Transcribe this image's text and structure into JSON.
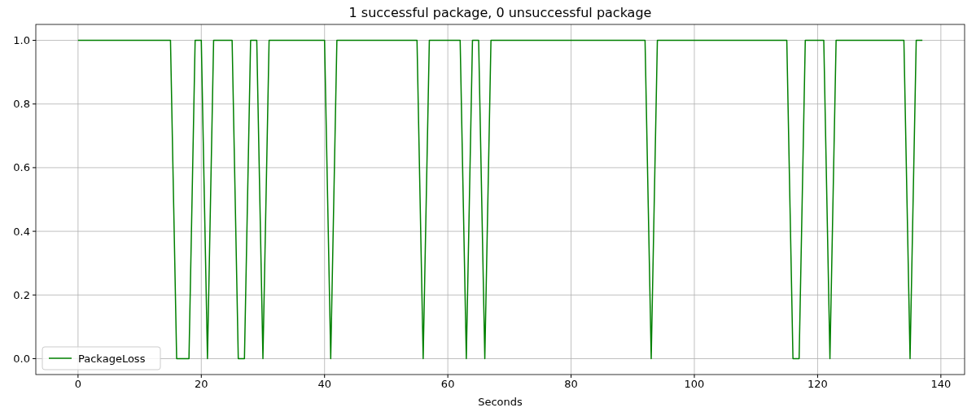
{
  "chart_data": {
    "type": "line",
    "title": "1 successful package, 0 unsuccessful package",
    "xlabel": "Seconds",
    "x": [
      0,
      15,
      16,
      18,
      19,
      20,
      21,
      22,
      25,
      26,
      27,
      28,
      29,
      30,
      31,
      40,
      41,
      42,
      55,
      56,
      57,
      62,
      63,
      64,
      65,
      66,
      67,
      92,
      93,
      94,
      115,
      116,
      117,
      118,
      121,
      122,
      123,
      134,
      135,
      136,
      137
    ],
    "series": [
      {
        "name": "PackageLoss",
        "color": "#008000",
        "values": [
          1,
          1,
          0,
          0,
          1,
          1,
          0,
          1,
          1,
          0,
          0,
          1,
          1,
          0,
          1,
          1,
          0,
          1,
          1,
          0,
          1,
          1,
          0,
          1,
          1,
          0,
          1,
          1,
          0,
          1,
          1,
          0,
          0,
          1,
          1,
          0,
          1,
          1,
          0,
          1,
          1
        ]
      }
    ],
    "xlim": [
      -6.85,
      143.85
    ],
    "ylim": [
      -0.05,
      1.05
    ],
    "xticks": [
      0,
      20,
      40,
      60,
      80,
      100,
      120,
      140
    ],
    "yticks": [
      {
        "value": 0,
        "label": "0.0"
      },
      {
        "value": 0.2,
        "label": "0.2"
      },
      {
        "value": 0.4,
        "label": "0.4"
      },
      {
        "value": 0.6,
        "label": "0.6"
      },
      {
        "value": 0.8,
        "label": "0.8"
      },
      {
        "value": 1,
        "label": "1.0"
      }
    ],
    "grid": true,
    "legend": "bottom left",
    "line_style": "solid",
    "marker": "none"
  }
}
